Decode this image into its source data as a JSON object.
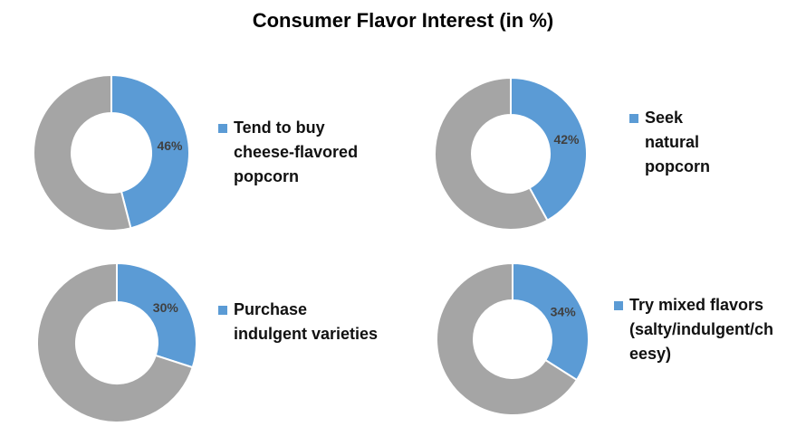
{
  "title": "Consumer Flavor Interest (in %)",
  "colors": {
    "value": "#5b9bd5",
    "remainder": "#a5a5a5"
  },
  "chart_data": [
    {
      "type": "pie",
      "hole": "donut",
      "label": "Tend to buy\ncheese-flavored\npopcorn",
      "value": 46,
      "value_label": "46%"
    },
    {
      "type": "pie",
      "hole": "donut",
      "label": "Seek\nnatural\npopcorn",
      "value": 42,
      "value_label": "42%"
    },
    {
      "type": "pie",
      "hole": "donut",
      "label": "Purchase\nindulgent varieties",
      "value": 30,
      "value_label": "30%"
    },
    {
      "type": "pie",
      "hole": "donut",
      "label": "Try mixed flavors\n(salty/indulgent/ch\neesy)",
      "value": 34,
      "value_label": "34%"
    }
  ]
}
